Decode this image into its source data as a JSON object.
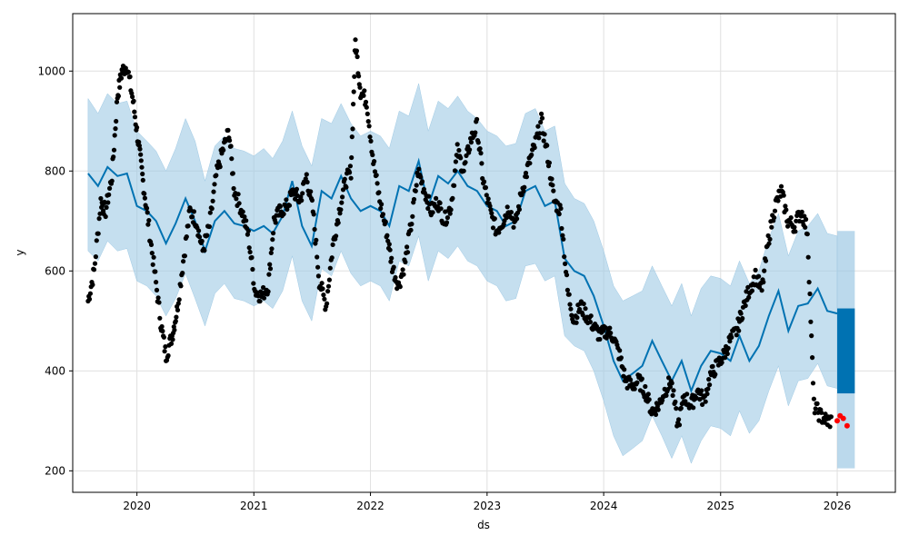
{
  "chart_data": {
    "type": "line",
    "title": "",
    "xlabel": "ds",
    "ylabel": "y",
    "xlim": [
      "2019-06-14",
      "2026-07-02"
    ],
    "ylim": [
      157,
      1115
    ],
    "grid": true,
    "legend": "none",
    "xticks": [
      {
        "value": "2020-01-01",
        "label": "2020"
      },
      {
        "value": "2021-01-01",
        "label": "2021"
      },
      {
        "value": "2022-01-01",
        "label": "2022"
      },
      {
        "value": "2023-01-01",
        "label": "2023"
      },
      {
        "value": "2024-01-01",
        "label": "2024"
      },
      {
        "value": "2025-01-01",
        "label": "2025"
      },
      {
        "value": "2026-01-01",
        "label": "2026"
      }
    ],
    "yticks": [
      {
        "value": 200,
        "label": "200"
      },
      {
        "value": 400,
        "label": "400"
      },
      {
        "value": 600,
        "label": "600"
      },
      {
        "value": 800,
        "label": "800"
      },
      {
        "value": 1000,
        "label": "1000"
      }
    ],
    "colors": {
      "forecast": "#0072B2",
      "interval": "#9ec9e4",
      "observed": "#000000",
      "recent": "#ff0000",
      "grid": "#e0e0e0"
    },
    "series": [
      {
        "kind": "forecast",
        "x": [
          "2019-08-01",
          "2019-09-01",
          "2019-10-01",
          "2019-11-01",
          "2019-12-01",
          "2020-01-01",
          "2020-02-01",
          "2020-03-01",
          "2020-04-01",
          "2020-05-01",
          "2020-06-01",
          "2020-07-01",
          "2020-08-01",
          "2020-09-01",
          "2020-10-01",
          "2020-11-01",
          "2020-12-01",
          "2021-01-01",
          "2021-02-01",
          "2021-03-01",
          "2021-04-01",
          "2021-05-01",
          "2021-06-01",
          "2021-07-01",
          "2021-08-01",
          "2021-09-01",
          "2021-10-01",
          "2021-11-01",
          "2021-12-01",
          "2022-01-01",
          "2022-02-01",
          "2022-03-01",
          "2022-04-01",
          "2022-05-01",
          "2022-06-01",
          "2022-07-01",
          "2022-08-01",
          "2022-09-01",
          "2022-10-01",
          "2022-11-01",
          "2022-12-01",
          "2023-01-01",
          "2023-02-01",
          "2023-03-01",
          "2023-04-01",
          "2023-05-01",
          "2023-06-01",
          "2023-07-01",
          "2023-08-01",
          "2023-09-01",
          "2023-10-01",
          "2023-11-01",
          "2023-12-01",
          "2024-01-01",
          "2024-02-01",
          "2024-03-01",
          "2024-04-01",
          "2024-05-01",
          "2024-06-01",
          "2024-07-01",
          "2024-08-01",
          "2024-09-01",
          "2024-10-01",
          "2024-11-01",
          "2024-12-01",
          "2025-01-01",
          "2025-02-01",
          "2025-03-01",
          "2025-04-01",
          "2025-05-01",
          "2025-06-01",
          "2025-07-01",
          "2025-08-01",
          "2025-09-01",
          "2025-10-01",
          "2025-11-01",
          "2025-12-01",
          "2026-01-01"
        ],
        "y": [
          795,
          770,
          808,
          790,
          795,
          730,
          720,
          700,
          655,
          695,
          745,
          700,
          640,
          700,
          720,
          695,
          690,
          680,
          690,
          675,
          710,
          780,
          690,
          650,
          760,
          745,
          790,
          745,
          720,
          730,
          720,
          690,
          770,
          760,
          820,
          730,
          790,
          775,
          800,
          770,
          760,
          730,
          720,
          690,
          700,
          760,
          770,
          730,
          740,
          625,
          600,
          590,
          550,
          490,
          420,
          380,
          395,
          410,
          460,
          420,
          380,
          420,
          360,
          410,
          440,
          435,
          420,
          470,
          420,
          450,
          510,
          560,
          480,
          530,
          535,
          565,
          520,
          515
        ]
      },
      {
        "kind": "upper",
        "x": [
          "2019-08-01",
          "2019-09-01",
          "2019-10-01",
          "2019-11-01",
          "2019-12-01",
          "2020-01-01",
          "2020-02-01",
          "2020-03-01",
          "2020-04-01",
          "2020-05-01",
          "2020-06-01",
          "2020-07-01",
          "2020-08-01",
          "2020-09-01",
          "2020-10-01",
          "2020-11-01",
          "2020-12-01",
          "2021-01-01",
          "2021-02-01",
          "2021-03-01",
          "2021-04-01",
          "2021-05-01",
          "2021-06-01",
          "2021-07-01",
          "2021-08-01",
          "2021-09-01",
          "2021-10-01",
          "2021-11-01",
          "2021-12-01",
          "2022-01-01",
          "2022-02-01",
          "2022-03-01",
          "2022-04-01",
          "2022-05-01",
          "2022-06-01",
          "2022-07-01",
          "2022-08-01",
          "2022-09-01",
          "2022-10-01",
          "2022-11-01",
          "2022-12-01",
          "2023-01-01",
          "2023-02-01",
          "2023-03-01",
          "2023-04-01",
          "2023-05-01",
          "2023-06-01",
          "2023-07-01",
          "2023-08-01",
          "2023-09-01",
          "2023-10-01",
          "2023-11-01",
          "2023-12-01",
          "2024-01-01",
          "2024-02-01",
          "2024-03-01",
          "2024-04-01",
          "2024-05-01",
          "2024-06-01",
          "2024-07-01",
          "2024-08-01",
          "2024-09-01",
          "2024-10-01",
          "2024-11-01",
          "2024-12-01",
          "2025-01-01",
          "2025-02-01",
          "2025-03-01",
          "2025-04-01",
          "2025-05-01",
          "2025-06-01",
          "2025-07-01",
          "2025-08-01",
          "2025-09-01",
          "2025-10-01",
          "2025-11-01",
          "2025-12-01",
          "2026-01-01"
        ],
        "y": [
          945,
          915,
          955,
          935,
          940,
          880,
          860,
          840,
          800,
          845,
          905,
          860,
          780,
          850,
          870,
          845,
          840,
          830,
          845,
          825,
          860,
          920,
          850,
          810,
          905,
          895,
          935,
          895,
          870,
          880,
          870,
          845,
          920,
          910,
          975,
          880,
          940,
          925,
          950,
          920,
          905,
          880,
          870,
          850,
          855,
          915,
          925,
          880,
          890,
          775,
          745,
          735,
          700,
          640,
          570,
          540,
          550,
          560,
          610,
          570,
          530,
          575,
          510,
          565,
          590,
          585,
          570,
          620,
          575,
          600,
          665,
          715,
          630,
          680,
          690,
          715,
          675,
          670
        ]
      },
      {
        "kind": "lower",
        "x": [
          "2019-08-01",
          "2019-09-01",
          "2019-10-01",
          "2019-11-01",
          "2019-12-01",
          "2020-01-01",
          "2020-02-01",
          "2020-03-01",
          "2020-04-01",
          "2020-05-01",
          "2020-06-01",
          "2020-07-01",
          "2020-08-01",
          "2020-09-01",
          "2020-10-01",
          "2020-11-01",
          "2020-12-01",
          "2021-01-01",
          "2021-02-01",
          "2021-03-01",
          "2021-04-01",
          "2021-05-01",
          "2021-06-01",
          "2021-07-01",
          "2021-08-01",
          "2021-09-01",
          "2021-10-01",
          "2021-11-01",
          "2021-12-01",
          "2022-01-01",
          "2022-02-01",
          "2022-03-01",
          "2022-04-01",
          "2022-05-01",
          "2022-06-01",
          "2022-07-01",
          "2022-08-01",
          "2022-09-01",
          "2022-10-01",
          "2022-11-01",
          "2022-12-01",
          "2023-01-01",
          "2023-02-01",
          "2023-03-01",
          "2023-04-01",
          "2023-05-01",
          "2023-06-01",
          "2023-07-01",
          "2023-08-01",
          "2023-09-01",
          "2023-10-01",
          "2023-11-01",
          "2023-12-01",
          "2024-01-01",
          "2024-02-01",
          "2024-03-01",
          "2024-04-01",
          "2024-05-01",
          "2024-06-01",
          "2024-07-01",
          "2024-08-01",
          "2024-09-01",
          "2024-10-01",
          "2024-11-01",
          "2024-12-01",
          "2025-01-01",
          "2025-02-01",
          "2025-03-01",
          "2025-04-01",
          "2025-05-01",
          "2025-06-01",
          "2025-07-01",
          "2025-08-01",
          "2025-09-01",
          "2025-10-01",
          "2025-11-01",
          "2025-12-01",
          "2026-01-01"
        ],
        "y": [
          640,
          620,
          660,
          640,
          645,
          580,
          570,
          550,
          510,
          545,
          595,
          545,
          490,
          555,
          575,
          545,
          540,
          530,
          540,
          525,
          560,
          630,
          540,
          500,
          605,
          590,
          640,
          595,
          570,
          580,
          570,
          540,
          620,
          610,
          670,
          580,
          640,
          625,
          650,
          620,
          610,
          580,
          570,
          540,
          545,
          610,
          615,
          580,
          590,
          470,
          450,
          440,
          400,
          340,
          270,
          230,
          245,
          260,
          310,
          270,
          225,
          270,
          215,
          260,
          290,
          285,
          270,
          320,
          275,
          300,
          360,
          410,
          330,
          380,
          385,
          415,
          370,
          365
        ]
      },
      {
        "kind": "observed",
        "x": [
          "2019-08-01",
          "2019-08-20",
          "2019-09-10",
          "2019-09-25",
          "2019-10-15",
          "2019-11-01",
          "2019-11-15",
          "2019-12-01",
          "2019-12-20",
          "2020-01-05",
          "2020-01-20",
          "2020-02-05",
          "2020-02-25",
          "2020-03-15",
          "2020-04-01",
          "2020-04-20",
          "2020-05-05",
          "2020-05-25",
          "2020-06-15",
          "2020-07-05",
          "2020-07-25",
          "2020-08-15",
          "2020-09-05",
          "2020-09-25",
          "2020-10-15",
          "2020-11-01",
          "2020-11-25",
          "2020-12-15",
          "2021-01-05",
          "2021-01-25",
          "2021-02-15",
          "2021-03-05",
          "2021-03-25",
          "2021-04-15",
          "2021-05-05",
          "2021-05-25",
          "2021-06-15",
          "2021-07-05",
          "2021-07-25",
          "2021-08-15",
          "2021-09-05",
          "2021-09-25",
          "2021-10-15",
          "2021-11-01",
          "2021-11-15",
          "2021-12-01",
          "2021-12-20",
          "2022-01-10",
          "2022-01-30",
          "2022-02-20",
          "2022-03-10",
          "2022-03-30",
          "2022-04-20",
          "2022-05-10",
          "2022-05-30",
          "2022-06-20",
          "2022-07-10",
          "2022-07-30",
          "2022-08-20",
          "2022-09-10",
          "2022-09-30",
          "2022-10-20",
          "2022-11-10",
          "2022-11-30",
          "2022-12-20",
          "2023-01-10",
          "2023-01-30",
          "2023-02-20",
          "2023-03-10",
          "2023-03-30",
          "2023-04-20",
          "2023-05-10",
          "2023-05-30",
          "2023-06-20",
          "2023-07-10",
          "2023-07-30",
          "2023-08-20",
          "2023-09-10",
          "2023-09-30",
          "2023-10-20",
          "2023-11-10",
          "2023-11-30",
          "2023-12-20",
          "2024-01-10",
          "2024-01-30",
          "2024-02-20",
          "2024-03-10",
          "2024-03-30",
          "2024-04-20",
          "2024-05-10",
          "2024-05-30",
          "2024-06-20",
          "2024-07-10",
          "2024-07-30",
          "2024-08-20",
          "2024-09-10",
          "2024-09-30",
          "2024-10-20",
          "2024-11-10",
          "2024-11-30",
          "2024-12-20",
          "2025-01-10",
          "2025-01-30",
          "2025-02-20",
          "2025-03-10",
          "2025-03-30",
          "2025-04-20",
          "2025-05-10",
          "2025-05-30",
          "2025-06-20",
          "2025-07-10",
          "2025-07-30",
          "2025-08-20",
          "2025-09-10",
          "2025-09-30",
          "2025-10-20",
          "2025-11-10",
          "2025-11-30",
          "2025-12-15"
        ],
        "y": [
          540,
          600,
          740,
          720,
          790,
          950,
          1000,
          1010,
          940,
          860,
          780,
          700,
          600,
          500,
          430,
          470,
          520,
          620,
          720,
          700,
          640,
          690,
          790,
          840,
          880,
          760,
          720,
          670,
          560,
          550,
          570,
          700,
          720,
          730,
          760,
          740,
          790,
          720,
          580,
          530,
          650,
          720,
          780,
          800,
          1060,
          960,
          940,
          820,
          740,
          680,
          610,
          570,
          620,
          700,
          800,
          760,
          720,
          740,
          700,
          730,
          840,
          800,
          860,
          890,
          780,
          720,
          680,
          700,
          730,
          690,
          760,
          810,
          850,
          900,
          830,
          740,
          720,
          560,
          500,
          530,
          510,
          490,
          470,
          480,
          470,
          430,
          380,
          370,
          380,
          360,
          320,
          330,
          360,
          380,
          290,
          350,
          330,
          360,
          340,
          390,
          410,
          430,
          460,
          480,
          520,
          560,
          590,
          560,
          660,
          730,
          760,
          700,
          690,
          720,
          680,
          330,
          310,
          300,
          300
        ]
      },
      {
        "kind": "recent",
        "x": [
          "2026-01-01",
          "2026-01-10",
          "2026-01-20",
          "2026-02-01"
        ],
        "y": [
          300,
          310,
          305,
          290
        ]
      }
    ]
  }
}
